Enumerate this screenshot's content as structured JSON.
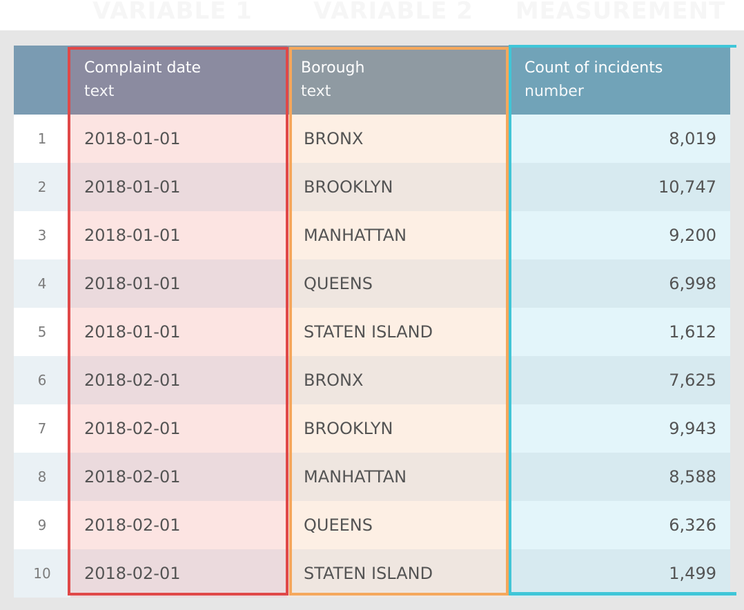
{
  "role_labels": [
    "VARIABLE 1",
    "VARIABLE 2",
    "MEASUREMENT"
  ],
  "columns": [
    {
      "name": "Complaint date",
      "type": "text"
    },
    {
      "name": "Borough",
      "type": "text"
    },
    {
      "name": "Count of incidents",
      "type": "number"
    }
  ],
  "rows": [
    {
      "index": "1",
      "date": "2018-01-01",
      "borough": "BRONX",
      "count": "8,019"
    },
    {
      "index": "2",
      "date": "2018-01-01",
      "borough": "BROOKLYN",
      "count": "10,747"
    },
    {
      "index": "3",
      "date": "2018-01-01",
      "borough": "MANHATTAN",
      "count": "9,200"
    },
    {
      "index": "4",
      "date": "2018-01-01",
      "borough": "QUEENS",
      "count": "6,998"
    },
    {
      "index": "5",
      "date": "2018-01-01",
      "borough": "STATEN ISLAND",
      "count": "1,612"
    },
    {
      "index": "6",
      "date": "2018-02-01",
      "borough": "BRONX",
      "count": "7,625"
    },
    {
      "index": "7",
      "date": "2018-02-01",
      "borough": "BROOKLYN",
      "count": "9,943"
    },
    {
      "index": "8",
      "date": "2018-02-01",
      "borough": "MANHATTAN",
      "count": "8,588"
    },
    {
      "index": "9",
      "date": "2018-02-01",
      "borough": "QUEENS",
      "count": "6,326"
    },
    {
      "index": "10",
      "date": "2018-02-01",
      "borough": "STATEN ISLAND",
      "count": "1,499"
    }
  ],
  "colors": {
    "variable_1": "#e04848",
    "variable_2": "#f5a85c",
    "measurement": "#3fc6d8",
    "header_index": "#7a9bb2",
    "header_variable_1": "#8b8ba0",
    "header_variable_2": "#8f9aa2",
    "header_measurement": "#71a3b8"
  }
}
